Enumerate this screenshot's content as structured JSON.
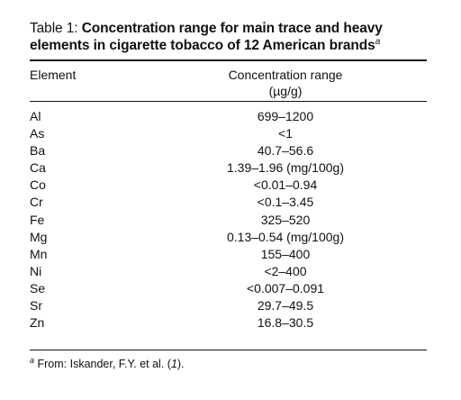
{
  "caption": {
    "prefix": "Table 1:",
    "title": "Concentration range for main trace and heavy elements in cigarette tobacco of 12 American brands",
    "footnote_mark": "a"
  },
  "table": {
    "headers": {
      "element": "Element",
      "range_line1": "Concentration range",
      "range_line2": "(µg/g)"
    },
    "rows": [
      {
        "element": "Al",
        "range": "699–1200"
      },
      {
        "element": "As",
        "range": "<1"
      },
      {
        "element": "Ba",
        "range": "40.7–56.6"
      },
      {
        "element": "Ca",
        "range": "1.39–1.96 (mg/100g)"
      },
      {
        "element": "Co",
        "range": "<0.01–0.94"
      },
      {
        "element": "Cr",
        "range": "<0.1–3.45"
      },
      {
        "element": "Fe",
        "range": "325–520"
      },
      {
        "element": "Mg",
        "range": "0.13–0.54 (mg/100g)"
      },
      {
        "element": "Mn",
        "range": "155–400"
      },
      {
        "element": "Ni",
        "range": "<2–400"
      },
      {
        "element": "Se",
        "range": "<0.007–0.091"
      },
      {
        "element": "Sr",
        "range": "29.7–49.5"
      },
      {
        "element": "Zn",
        "range": "16.8–30.5"
      }
    ]
  },
  "footnote": {
    "mark": "a",
    "text_before": "From: Iskander, F.Y. et al. (",
    "ref": "1",
    "text_after": ")."
  }
}
